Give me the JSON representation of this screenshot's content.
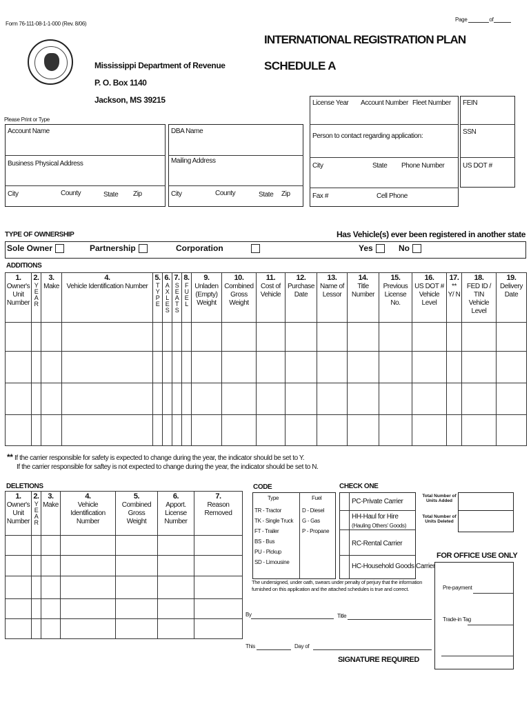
{
  "form_number": "Form 76-111-08-1-1-000 (Rev. 8/06)",
  "agency": {
    "name": "Mississippi Department of Revenue",
    "po_box": "P. O. Box 1140",
    "city": "Jackson, MS 39215",
    "seal_text": "THE GREAT SEAL OF THE STATE OF MISSISSIPPI"
  },
  "title": "INTERNATIONAL REGISTRATION PLAN",
  "subtitle": "SCHEDULE A",
  "page": {
    "label": "Page",
    "of": "of"
  },
  "print_note": "Please Print or Type",
  "fields": {
    "account_name": "Account  Name",
    "dba_name": "DBA Name",
    "business_address": "Business Physical Address",
    "mailing_address": "Mailing Address",
    "city": "City",
    "county": "County",
    "state": "State",
    "zip": "Zip",
    "license_year": "License Year",
    "account_number": "Account Number",
    "fleet_number": "Fleet Number",
    "fein": "FEIN",
    "contact": "Person to contact regarding application:",
    "ssn": "SSN",
    "phone": "Phone Number",
    "usdot": "US DOT #",
    "fax": "Fax #",
    "cell": "Cell Phone"
  },
  "ownership": {
    "heading": "TYPE OF OWNERSHIP",
    "sole": "Sole Owner",
    "partnership": "Partnership",
    "corporation": "Corporation",
    "registered_q": "Has Vehicle(s) ever been registered in another state",
    "yes": "Yes",
    "no": "No"
  },
  "additions": {
    "heading": "ADDITIONS",
    "columns": [
      {
        "num": "1.",
        "label": "Owner's\nUnit\nNumber"
      },
      {
        "num": "2.",
        "label": "YEAR",
        "stack": true
      },
      {
        "num": "3.",
        "label": "Make"
      },
      {
        "num": "4.",
        "label": "Vehicle Identification Number"
      },
      {
        "num": "5.",
        "label": "TYPE",
        "stack": true
      },
      {
        "num": "6.",
        "label": "AXLES",
        "stack": true
      },
      {
        "num": "7.",
        "label": "SEATS",
        "stack": true
      },
      {
        "num": "8.",
        "label": "FUEL",
        "stack": true
      },
      {
        "num": "9.",
        "label": "Unladen\n(Empty)\nWeight"
      },
      {
        "num": "10.",
        "label": "Combined\nGross Weight"
      },
      {
        "num": "11.",
        "label": "Cost of\nVehicle"
      },
      {
        "num": "12.",
        "label": "Purchase\nDate"
      },
      {
        "num": "13.",
        "label": "Name of\nLessor"
      },
      {
        "num": "14.",
        "label": "Title Number"
      },
      {
        "num": "15.",
        "label": "Previous\nLicense No."
      },
      {
        "num": "16.",
        "label": "US DOT #\nVehicle Level"
      },
      {
        "num": "17.",
        "label": "**\nY/ N"
      },
      {
        "num": "18.",
        "label": "FED ID / TIN\nVehicle Level"
      },
      {
        "num": "19.",
        "label": "Delivery\nDate"
      }
    ]
  },
  "footnote": {
    "mark": "**",
    "line1": "If the carrier responsible for safety is expected to change during the year, the indicator should be set to Y.",
    "line2": "If the carrier responsible for saftey is not expected to change during the year, the indicator should be set to N."
  },
  "deletions": {
    "heading": "DELETIONS",
    "columns": [
      {
        "num": "1.",
        "label": "Owner's\nUnit\nNumber"
      },
      {
        "num": "2.",
        "label": "YEAR",
        "stack": true
      },
      {
        "num": "3.",
        "label": "Make"
      },
      {
        "num": "4.",
        "label": "Vehicle\nIdentification\nNumber"
      },
      {
        "num": "5.",
        "label": "Combined\nGross\nWeight"
      },
      {
        "num": "6.",
        "label": "Apport.\nLicense\nNumber"
      },
      {
        "num": "7.",
        "label": "Reason Removed"
      }
    ]
  },
  "code": {
    "heading": "CODE",
    "type_header": "Type",
    "fuel_header": "Fuel",
    "types": [
      "TR - Tractor",
      "TK - Single Truck",
      "FT - Trailer",
      "BS - Bus",
      "PU - Pickup",
      "SD - Limousine"
    ],
    "fuels": [
      "D - Diesel",
      "G - Gas",
      "P - Propane"
    ]
  },
  "check_one": {
    "heading": "CHECK ONE",
    "options": [
      {
        "label": "PC-Private Carrier"
      },
      {
        "label": "HH-Haul for Hire",
        "sub": "(Hauling Others' Goods)"
      },
      {
        "label": "RC-Rental Carrier"
      },
      {
        "label": "HC-Household Goods Carrier"
      }
    ]
  },
  "totals": {
    "added": "Total Number of\nUnits Added",
    "deleted": "Total Number of\nUnits Deleted"
  },
  "office": {
    "heading": "FOR OFFICE USE ONLY",
    "prepayment": "Pre-payment",
    "tradein": "Trade-in Tag"
  },
  "signature": {
    "oath": "The undersigned, under oath, swears under penalty of perjury that the information\nfurnished on this application and the attached schedules is true and correct.",
    "by": "By",
    "title": "Title",
    "this": "This",
    "day_of": "Day of",
    "required": "SIGNATURE REQUIRED"
  }
}
